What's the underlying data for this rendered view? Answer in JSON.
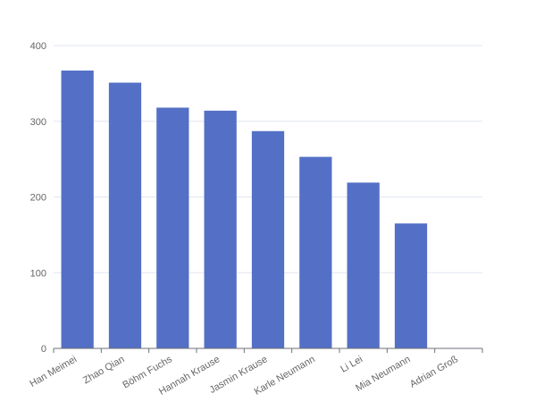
{
  "chart_data": {
    "type": "bar",
    "title": "",
    "xlabel": "",
    "ylabel": "",
    "categories": [
      "Han Meimei",
      "Zhao Qian",
      "Böhm Fuchs",
      "Hannah Krause",
      "Jasmin Krause",
      "Karle Neumann",
      "Li Lei",
      "Mia Neumann",
      "Adrian Groß"
    ],
    "values": [
      367,
      351,
      318,
      314,
      287,
      253,
      219,
      165,
      0
    ],
    "ylim": [
      0,
      400
    ],
    "yticks": [
      0,
      100,
      200,
      300,
      400
    ],
    "grid": true,
    "legend": "none",
    "bar_color": "#5470c6"
  }
}
